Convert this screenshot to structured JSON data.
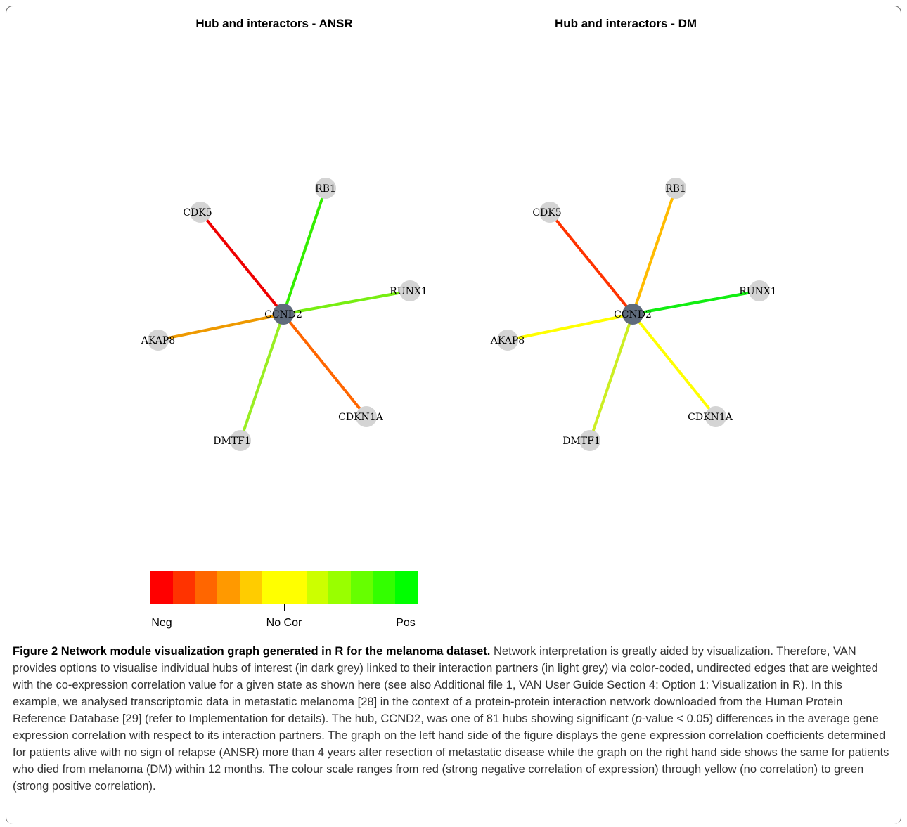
{
  "panels": [
    {
      "title": "Hub and interactors - ANSR",
      "hub": "CCND2",
      "interactors": [
        {
          "name": "RB1",
          "color": "#33ee00"
        },
        {
          "name": "CDK5",
          "color": "#ee0000"
        },
        {
          "name": "RUNX1",
          "color": "#77ee11"
        },
        {
          "name": "AKAP8",
          "color": "#ee9900"
        },
        {
          "name": "CDKN1A",
          "color": "#ff6600"
        },
        {
          "name": "DMTF1",
          "color": "#99ee22"
        }
      ]
    },
    {
      "title": "Hub and interactors - DM",
      "hub": "CCND2",
      "interactors": [
        {
          "name": "RB1",
          "color": "#ffbb00"
        },
        {
          "name": "CDK5",
          "color": "#ff3300"
        },
        {
          "name": "RUNX1",
          "color": "#11ee11"
        },
        {
          "name": "AKAP8",
          "color": "#ffff00"
        },
        {
          "name": "CDKN1A",
          "color": "#ffff00"
        },
        {
          "name": "DMTF1",
          "color": "#ccee22"
        }
      ]
    }
  ],
  "hub_color": "#5f6b7c",
  "interactor_color": "#d4d4d4",
  "color_scale": {
    "colors": [
      "#ff0000",
      "#ff3300",
      "#ff6600",
      "#ff9900",
      "#ffcc00",
      "#ffff00",
      "#ffff00",
      "#ccff00",
      "#99ff00",
      "#66ff00",
      "#33ff00",
      "#00ff00"
    ],
    "labels": {
      "neg": "Neg",
      "none": "No Cor",
      "pos": "Pos"
    }
  },
  "caption": {
    "label": "Figure 2 Network module visualization graph generated in R for the melanoma dataset.",
    "text_1": " Network interpretation is greatly aided by visualization. Therefore, VAN provides options to visualise individual hubs of interest (in dark grey) linked to their interaction partners (in light grey) via color-coded, undirected edges that are weighted with the co-expression correlation value for a given state as shown here (see also Additional file 1, VAN User Guide Section 4: Option 1: Visualization in R). In this example, we analysed transcriptomic data in metastatic melanoma [28] in the context of a protein-protein interaction network downloaded from the Human Protein Reference Database [29] (refer to Implementation for details). The hub, CCND2, was one of 81 hubs showing significant (",
    "p_italic": "p",
    "text_2": "-value < 0.05) differences in the average gene expression correlation with respect to its interaction partners. The graph on the left hand side of the figure displays the gene expression correlation coefficients determined for patients alive with no sign of relapse (ANSR) more than 4 years after resection of metastatic disease while the graph on the right hand side shows the same for patients who died from melanoma (DM) within 12 months. The colour scale ranges from red (strong negative correlation of expression) through yellow (no correlation) to green (strong positive correlation)."
  }
}
